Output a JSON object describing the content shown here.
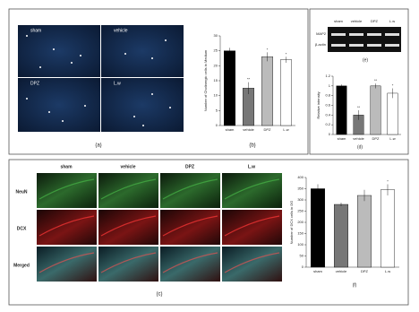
{
  "panels": {
    "a": {
      "label": "(a)",
      "groups": [
        "sham",
        "vehicle",
        "DPZ",
        "L.w"
      ]
    },
    "b": {
      "label": "(b)"
    },
    "c": {
      "label": "(c)",
      "columns": [
        "sham",
        "vehicle",
        "DPZ",
        "L.w"
      ],
      "rows": [
        "NeuN",
        "DCX",
        "Merged"
      ]
    },
    "d": {
      "label": "(d)"
    },
    "e": {
      "label": "(e)",
      "columns": [
        "sham",
        "vehicle",
        "DPZ",
        "L.w"
      ],
      "rows": [
        "MAP2",
        "β-actin"
      ]
    },
    "f": {
      "label": "(f)"
    }
  },
  "chart_data": [
    {
      "type": "bar",
      "ylabel": "Number of Cholinergic cells in Medium",
      "categories": [
        "sham",
        "vehicle",
        "DPZ",
        "L.w"
      ],
      "values": [
        25,
        12.5,
        23,
        22
      ],
      "errors": [
        1,
        2,
        1.5,
        1
      ],
      "annotations": [
        null,
        "**",
        "*",
        "*"
      ],
      "colors": [
        "#000000",
        "#777777",
        "#bbbbbb",
        "#ffffff"
      ],
      "ylim": [
        0,
        30
      ],
      "yticks": [
        0,
        5,
        10,
        15,
        20,
        25,
        30
      ]
    },
    {
      "type": "bar",
      "ylabel": "Relative intensity",
      "categories": [
        "sham",
        "vehicle",
        "DPZ",
        "L.w"
      ],
      "values": [
        1.0,
        0.4,
        1.0,
        0.85
      ],
      "errors": [
        0.03,
        0.1,
        0.05,
        0.1
      ],
      "annotations": [
        null,
        "**",
        "**",
        "*"
      ],
      "colors": [
        "#000000",
        "#777777",
        "#bbbbbb",
        "#ffffff"
      ],
      "ylim": [
        0,
        1.2
      ],
      "yticks": [
        0,
        0.2,
        0.4,
        0.6,
        0.8,
        1,
        1.2
      ]
    },
    {
      "type": "bar",
      "ylabel": "Number of DCX cells in DG",
      "categories": [
        "sham",
        "vehicle",
        "DPZ",
        "L.w"
      ],
      "values": [
        350,
        280,
        320,
        345
      ],
      "errors": [
        20,
        8,
        25,
        25
      ],
      "annotations": [
        null,
        null,
        null,
        "*"
      ],
      "colors": [
        "#000000",
        "#777777",
        "#bbbbbb",
        "#ffffff"
      ],
      "ylim": [
        0,
        400
      ],
      "yticks": [
        0,
        50,
        100,
        150,
        200,
        250,
        300,
        350,
        400
      ]
    }
  ]
}
